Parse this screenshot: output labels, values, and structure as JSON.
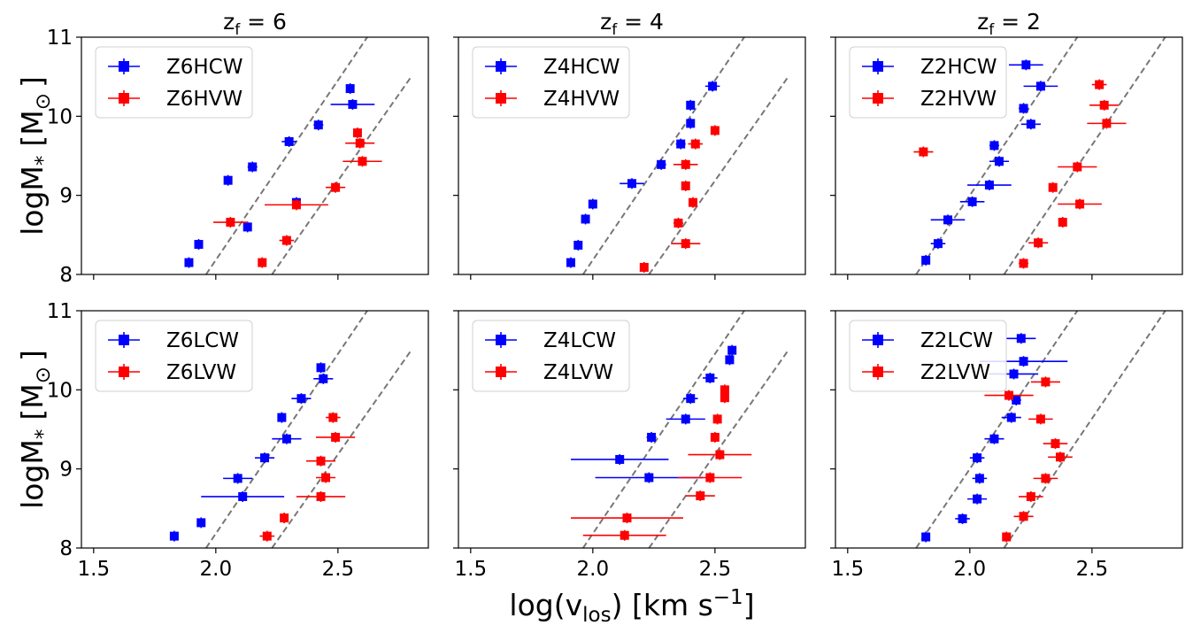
{
  "figure": {
    "ylabel_main": "logM",
    "ylabel_sub": "*",
    "ylabel_unit": "[M",
    "ylabel_sun": "⊙",
    "ylabel_close": "]",
    "xlabel_main": "log(v",
    "xlabel_sub": "los",
    "xlabel_unit": ") [km s",
    "xlabel_sup": "−1",
    "xlabel_close": "]",
    "col_titles": [
      {
        "label": "z",
        "sub": "f",
        "eq": " = 6"
      },
      {
        "label": "z",
        "sub": "f",
        "eq": " = 4"
      },
      {
        "label": "z",
        "sub": "f",
        "eq": " = 2"
      }
    ],
    "x_ticks": [
      "1.5",
      "2.0",
      "2.5"
    ],
    "y_ticks": [
      "8",
      "9",
      "10",
      "11"
    ],
    "colors": {
      "blue": "#0000ff",
      "red": "#ff0000",
      "dash": "#777777"
    }
  },
  "chart_data": [
    {
      "type": "scatter",
      "panel": "Z6 high",
      "xlim": [
        1.45,
        2.87
      ],
      "ylim": [
        8,
        11
      ],
      "xlabel": "log(vlos) [km s^-1]",
      "ylabel": "logM* [Msun]",
      "legend_position": "upper-left",
      "guide_lines": [
        [
          1.96,
          8.0,
          2.62,
          11.0
        ],
        [
          2.23,
          8.0,
          2.8,
          10.5
        ]
      ],
      "series": [
        {
          "name": "Z6HCW",
          "color": "#0000ff",
          "points": [
            [
              1.89,
              8.15,
              0.01
            ],
            [
              1.93,
              8.38,
              0.01
            ],
            [
              2.05,
              9.19,
              0.01
            ],
            [
              2.13,
              8.6,
              0.01
            ],
            [
              2.15,
              9.36,
              0.02
            ],
            [
              2.3,
              9.68,
              0.03
            ],
            [
              2.33,
              8.91,
              0.01
            ],
            [
              2.42,
              9.89,
              0.02
            ],
            [
              2.55,
              10.35,
              0.01
            ],
            [
              2.56,
              10.15,
              0.09
            ]
          ]
        },
        {
          "name": "Z6HVW",
          "color": "#ff0000",
          "points": [
            [
              2.06,
              8.66,
              0.07
            ],
            [
              2.19,
              8.15,
              0.01
            ],
            [
              2.29,
              8.43,
              0.03
            ],
            [
              2.33,
              8.88,
              0.13
            ],
            [
              2.49,
              9.1,
              0.04
            ],
            [
              2.58,
              9.79,
              0.01
            ],
            [
              2.59,
              9.66,
              0.06
            ],
            [
              2.6,
              9.43,
              0.08
            ]
          ]
        }
      ]
    },
    {
      "type": "scatter",
      "panel": "Z4 high",
      "xlim": [
        1.45,
        2.87
      ],
      "ylim": [
        8,
        11
      ],
      "xlabel": "log(vlos) [km s^-1]",
      "ylabel": "logM* [Msun]",
      "legend_position": "upper-left",
      "guide_lines": [
        [
          1.96,
          8.0,
          2.62,
          11.0
        ],
        [
          2.23,
          8.0,
          2.8,
          10.5
        ]
      ],
      "series": [
        {
          "name": "Z4HCW",
          "color": "#0000ff",
          "points": [
            [
              1.91,
              8.15,
              0.01
            ],
            [
              1.94,
              8.37,
              0.01
            ],
            [
              1.97,
              8.7,
              0.01
            ],
            [
              2.0,
              8.89,
              0.01
            ],
            [
              2.16,
              9.15,
              0.05
            ],
            [
              2.28,
              9.39,
              0.02
            ],
            [
              2.36,
              9.65,
              0.02
            ],
            [
              2.4,
              9.91,
              0.01
            ],
            [
              2.4,
              10.14,
              0.01
            ],
            [
              2.49,
              10.38,
              0.03
            ]
          ]
        },
        {
          "name": "Z4HVW",
          "color": "#ff0000",
          "points": [
            [
              2.21,
              8.09,
              0.01
            ],
            [
              2.35,
              8.65,
              0.02
            ],
            [
              2.38,
              8.39,
              0.06
            ],
            [
              2.38,
              9.12,
              0.01
            ],
            [
              2.38,
              9.39,
              0.05
            ],
            [
              2.41,
              8.91,
              0.01
            ],
            [
              2.42,
              9.65,
              0.03
            ],
            [
              2.5,
              9.82,
              0.01
            ]
          ]
        }
      ]
    },
    {
      "type": "scatter",
      "panel": "Z2 high",
      "xlim": [
        1.45,
        2.87
      ],
      "ylim": [
        8,
        11
      ],
      "xlabel": "log(vlos) [km s^-1]",
      "ylabel": "logM* [Msun]",
      "legend_position": "upper-left",
      "guide_lines": [
        [
          1.78,
          8.0,
          2.44,
          11.0
        ],
        [
          2.14,
          8.0,
          2.8,
          11.0
        ]
      ],
      "series": [
        {
          "name": "Z2HCW",
          "color": "#0000ff",
          "points": [
            [
              1.82,
              8.18,
              0.01
            ],
            [
              1.87,
              8.39,
              0.03
            ],
            [
              1.91,
              8.69,
              0.07
            ],
            [
              2.01,
              8.92,
              0.05
            ],
            [
              2.08,
              9.13,
              0.09
            ],
            [
              2.1,
              9.63,
              0.02
            ],
            [
              2.12,
              9.43,
              0.04
            ],
            [
              2.22,
              10.1,
              0.02
            ],
            [
              2.23,
              10.65,
              0.07
            ],
            [
              2.25,
              9.9,
              0.04
            ],
            [
              2.29,
              10.38,
              0.07
            ]
          ]
        },
        {
          "name": "Z2HVW",
          "color": "#ff0000",
          "points": [
            [
              1.81,
              9.55,
              0.04
            ],
            [
              2.22,
              8.14,
              0.02
            ],
            [
              2.28,
              8.4,
              0.04
            ],
            [
              2.34,
              9.1,
              0.01
            ],
            [
              2.38,
              8.66,
              0.01
            ],
            [
              2.44,
              9.36,
              0.08
            ],
            [
              2.45,
              8.89,
              0.09
            ],
            [
              2.53,
              10.4,
              0.03
            ],
            [
              2.55,
              10.14,
              0.06
            ],
            [
              2.56,
              9.91,
              0.08
            ]
          ]
        }
      ]
    },
    {
      "type": "scatter",
      "panel": "Z6 low",
      "xlim": [
        1.45,
        2.87
      ],
      "ylim": [
        8,
        11
      ],
      "xlabel": "log(vlos) [km s^-1]",
      "ylabel": "logM* [Msun]",
      "legend_position": "upper-left",
      "guide_lines": [
        [
          1.96,
          8.0,
          2.62,
          11.0
        ],
        [
          2.23,
          8.0,
          2.8,
          10.5
        ]
      ],
      "series": [
        {
          "name": "Z6LCW",
          "color": "#0000ff",
          "points": [
            [
              1.83,
              8.15,
              0.01
            ],
            [
              1.94,
              8.32,
              0.01
            ],
            [
              2.09,
              8.88,
              0.06
            ],
            [
              2.11,
              8.65,
              0.17
            ],
            [
              2.2,
              9.14,
              0.04
            ],
            [
              2.27,
              9.65,
              0.01
            ],
            [
              2.29,
              9.38,
              0.06
            ],
            [
              2.35,
              9.89,
              0.04
            ],
            [
              2.43,
              10.28,
              0.01
            ],
            [
              2.44,
              10.14,
              0.04
            ]
          ]
        },
        {
          "name": "Z6LVW",
          "color": "#ff0000",
          "points": [
            [
              2.21,
              8.15,
              0.03
            ],
            [
              2.28,
              8.38,
              0.01
            ],
            [
              2.43,
              8.65,
              0.1
            ],
            [
              2.43,
              9.1,
              0.06
            ],
            [
              2.45,
              8.89,
              0.04
            ],
            [
              2.48,
              9.65,
              0.03
            ],
            [
              2.49,
              9.4,
              0.08
            ]
          ]
        }
      ]
    },
    {
      "type": "scatter",
      "panel": "Z4 low",
      "xlim": [
        1.45,
        2.87
      ],
      "ylim": [
        8,
        11
      ],
      "xlabel": "log(vlos) [km s^-1]",
      "ylabel": "logM* [Msun]",
      "legend_position": "upper-left",
      "guide_lines": [
        [
          1.96,
          8.0,
          2.62,
          11.0
        ],
        [
          2.23,
          8.0,
          2.8,
          10.5
        ]
      ],
      "series": [
        {
          "name": "Z4LCW",
          "color": "#0000ff",
          "points": [
            [
              2.11,
              9.12,
              0.2
            ],
            [
              2.23,
              8.89,
              0.22
            ],
            [
              2.24,
              9.4,
              0.02
            ],
            [
              2.38,
              9.63,
              0.08
            ],
            [
              2.4,
              9.89,
              0.03
            ],
            [
              2.48,
              10.15,
              0.03
            ],
            [
              2.56,
              10.38,
              0.01
            ],
            [
              2.57,
              10.5,
              0.01
            ]
          ]
        },
        {
          "name": "Z4LVW",
          "color": "#ff0000",
          "points": [
            [
              2.13,
              8.16,
              0.17
            ],
            [
              2.14,
              8.38,
              0.23
            ],
            [
              2.44,
              8.66,
              0.06
            ],
            [
              2.48,
              8.89,
              0.13
            ],
            [
              2.5,
              9.4,
              0.01
            ],
            [
              2.51,
              9.63,
              0.01
            ],
            [
              2.52,
              9.18,
              0.13
            ],
            [
              2.54,
              9.9,
              0.01
            ],
            [
              2.54,
              10.0,
              0.01
            ]
          ]
        }
      ]
    },
    {
      "type": "scatter",
      "panel": "Z2 low",
      "xlim": [
        1.45,
        2.87
      ],
      "ylim": [
        8,
        11
      ],
      "xlabel": "log(vlos) [km s^-1]",
      "ylabel": "logM* [Msun]",
      "legend_position": "upper-left",
      "guide_lines": [
        [
          1.78,
          8.0,
          2.44,
          11.0
        ],
        [
          2.14,
          8.0,
          2.8,
          11.0
        ]
      ],
      "series": [
        {
          "name": "Z2LCW",
          "color": "#0000ff",
          "points": [
            [
              1.82,
              8.14,
              0.01
            ],
            [
              1.97,
              8.37,
              0.03
            ],
            [
              2.03,
              8.62,
              0.04
            ],
            [
              2.04,
              8.88,
              0.03
            ],
            [
              2.03,
              9.14,
              0.03
            ],
            [
              2.1,
              9.38,
              0.04
            ],
            [
              2.17,
              9.65,
              0.04
            ],
            [
              2.19,
              9.87,
              0.02
            ],
            [
              2.18,
              10.2,
              0.1
            ],
            [
              2.21,
              10.65,
              0.06
            ],
            [
              2.22,
              10.36,
              0.18
            ]
          ]
        },
        {
          "name": "Z2LVW",
          "color": "#ff0000",
          "points": [
            [
              2.15,
              8.14,
              0.01
            ],
            [
              2.22,
              8.4,
              0.04
            ],
            [
              2.25,
              8.65,
              0.05
            ],
            [
              2.31,
              8.88,
              0.05
            ],
            [
              2.37,
              9.15,
              0.05
            ],
            [
              2.35,
              9.32,
              0.05
            ],
            [
              2.29,
              9.63,
              0.05
            ],
            [
              2.31,
              10.1,
              0.06
            ],
            [
              2.16,
              9.93,
              0.1
            ]
          ]
        }
      ]
    }
  ]
}
